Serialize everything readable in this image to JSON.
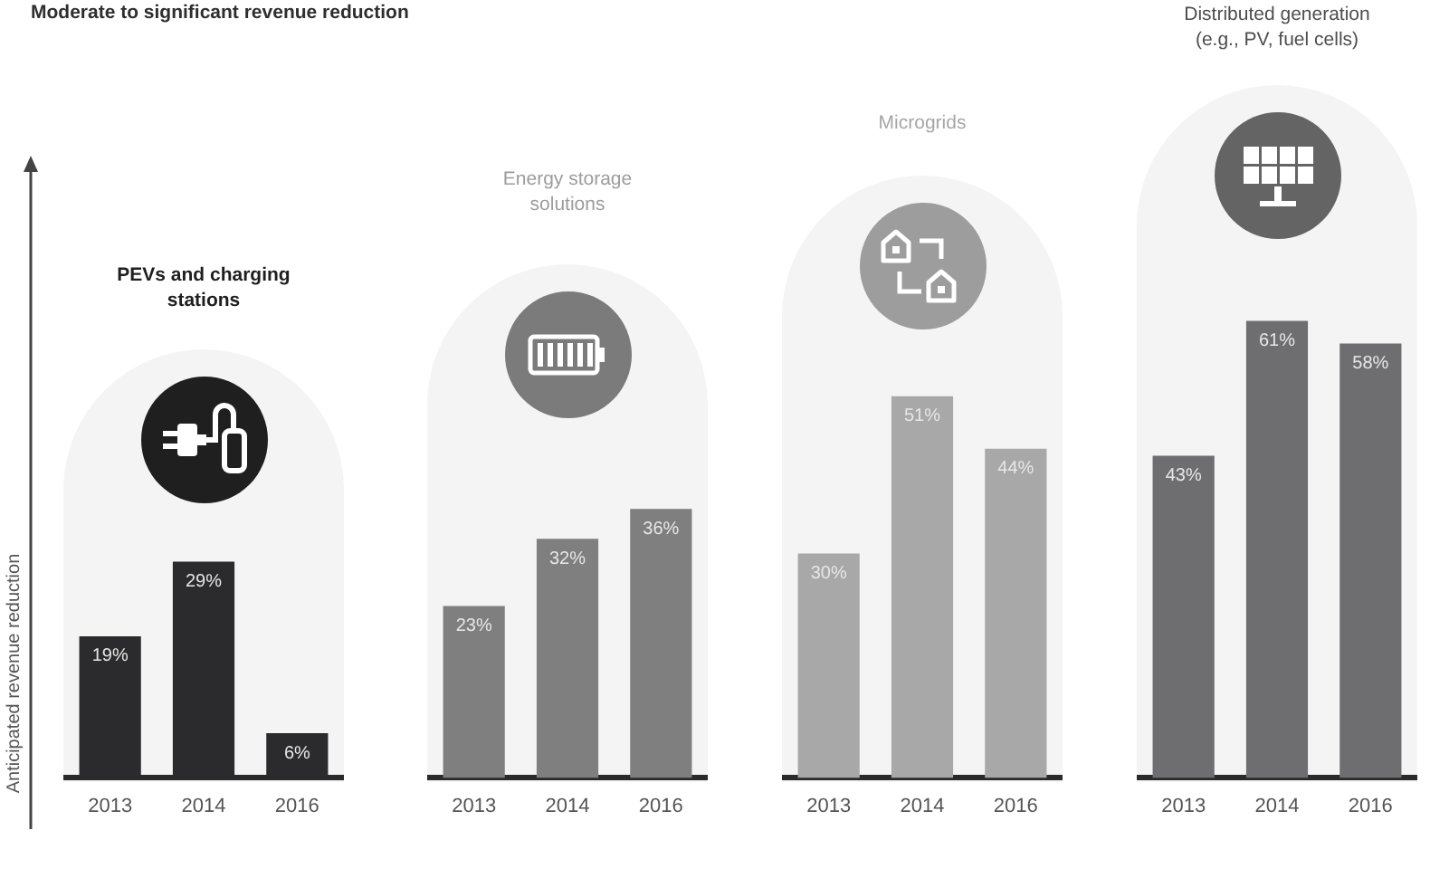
{
  "chart_data": [
    {
      "type": "bar",
      "title": "PEVs and charging stations",
      "ylabel": "Anticipated revenue reduction",
      "annotations": [
        "Moderate to significant revenue reduction"
      ],
      "categories": [
        "2013",
        "2014",
        "2016"
      ],
      "values": [
        19,
        29,
        6
      ],
      "value_labels": [
        "19%",
        "29%",
        "6%"
      ],
      "color": "#2b2b2d",
      "tick_labels": "x"
    },
    {
      "type": "bar",
      "title": "Energy storage solutions",
      "categories": [
        "2013",
        "2014",
        "2016"
      ],
      "values": [
        23,
        32,
        36
      ],
      "value_labels": [
        "23%",
        "32%",
        "36%"
      ],
      "color": "#7f7f7f",
      "tick_labels": "x"
    },
    {
      "type": "bar",
      "title": "Microgrids",
      "categories": [
        "2013",
        "2014",
        "2016"
      ],
      "values": [
        30,
        51,
        44
      ],
      "value_labels": [
        "30%",
        "51%",
        "44%"
      ],
      "color": "#a8a8a8",
      "tick_labels": "x"
    },
    {
      "type": "bar",
      "title": "Distributed generation (e.g., PV, fuel cells)",
      "categories": [
        "2013",
        "2014",
        "2016"
      ],
      "values": [
        43,
        61,
        58
      ],
      "value_labels": [
        "43%",
        "61%",
        "58%"
      ],
      "color": "#6e6e70",
      "tick_labels": "x"
    }
  ]
}
